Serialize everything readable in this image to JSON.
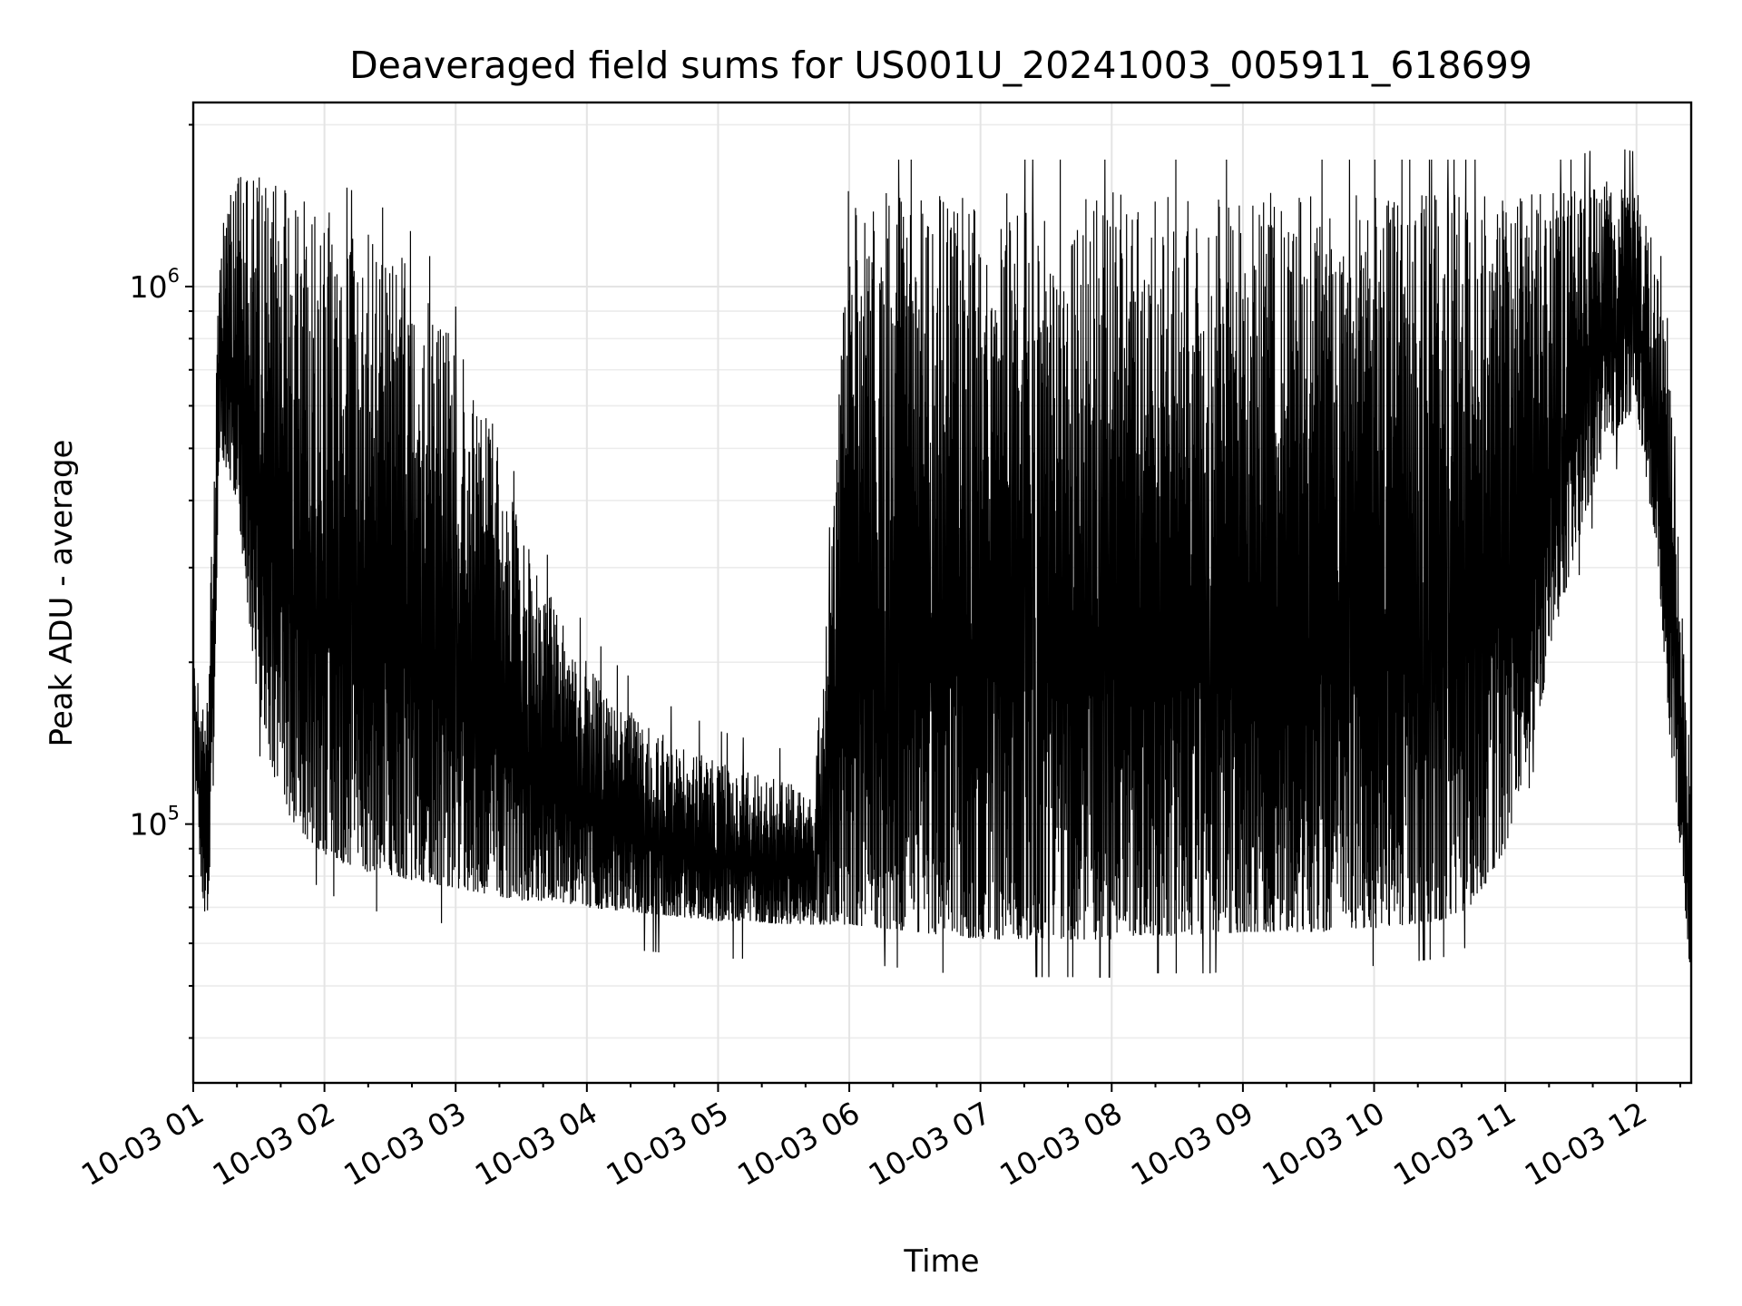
{
  "chart_data": {
    "type": "line",
    "title": "Deaveraged field sums for US001U_20241003_005911_618699",
    "xlabel": "Time",
    "ylabel": "Peak ADU - average",
    "x_scale": "time",
    "y_scale": "log",
    "xlim": [
      "2024-10-03 01:00",
      "2024-10-03 12:25"
    ],
    "ylim": [
      33000,
      2200000
    ],
    "grid": true,
    "legend": "none",
    "x_ticks": [
      "10-03 01",
      "10-03 02",
      "10-03 03",
      "10-03 04",
      "10-03 05",
      "10-03 06",
      "10-03 07",
      "10-03 08",
      "10-03 09",
      "10-03 10",
      "10-03 11",
      "10-03 12"
    ],
    "y_ticks": [
      {
        "base": "10",
        "exponent": "5",
        "value": 100000
      },
      {
        "base": "10",
        "exponent": "6",
        "value": 1000000
      }
    ],
    "line_color": "#000000",
    "series": [
      {
        "x": [
          "2024-10-03 01:00",
          "2024-10-03 01:03",
          "2024-10-03 01:06",
          "2024-10-03 01:09",
          "2024-10-03 01:12",
          "2024-10-03 01:20",
          "2024-10-03 01:30",
          "2024-10-03 01:40",
          "2024-10-03 01:50",
          "2024-10-03 02:00",
          "2024-10-03 02:15",
          "2024-10-03 02:30",
          "2024-10-03 02:45",
          "2024-10-03 03:00",
          "2024-10-03 03:15",
          "2024-10-03 03:30",
          "2024-10-03 03:45",
          "2024-10-03 04:00",
          "2024-10-03 04:15",
          "2024-10-03 04:30",
          "2024-10-03 04:45",
          "2024-10-03 05:00",
          "2024-10-03 05:15",
          "2024-10-03 05:30",
          "2024-10-03 05:45",
          "2024-10-03 06:00",
          "2024-10-03 06:15",
          "2024-10-03 06:30",
          "2024-10-03 06:45",
          "2024-10-03 07:00",
          "2024-10-03 07:15",
          "2024-10-03 07:30",
          "2024-10-03 07:45",
          "2024-10-03 08:00",
          "2024-10-03 08:15",
          "2024-10-03 08:30",
          "2024-10-03 08:45",
          "2024-10-03 09:00",
          "2024-10-03 09:15",
          "2024-10-03 09:30",
          "2024-10-03 09:45",
          "2024-10-03 10:00",
          "2024-10-03 10:15",
          "2024-10-03 10:30",
          "2024-10-03 10:45",
          "2024-10-03 11:00",
          "2024-10-03 11:15",
          "2024-10-03 11:30",
          "2024-10-03 11:45",
          "2024-10-03 12:00",
          "2024-10-03 12:10",
          "2024-10-03 12:15",
          "2024-10-03 12:20",
          "2024-10-03 12:25"
        ],
        "low": [
          180000,
          85000,
          62000,
          110000,
          500000,
          400000,
          160000,
          110000,
          95000,
          88000,
          82000,
          80000,
          78000,
          76000,
          74000,
          72000,
          72000,
          70000,
          69000,
          68000,
          67000,
          66000,
          66000,
          65000,
          65000,
          65000,
          64000,
          63000,
          62000,
          61000,
          61000,
          61000,
          61000,
          61000,
          62000,
          62000,
          62000,
          63000,
          63000,
          63000,
          63000,
          64000,
          65000,
          66000,
          70000,
          90000,
          160000,
          300000,
          500000,
          600000,
          300000,
          150000,
          90000,
          50000
        ],
        "high": [
          200000,
          180000,
          150000,
          400000,
          1300000,
          1600000,
          1600000,
          1550000,
          1500000,
          1400000,
          1300000,
          1200000,
          1050000,
          800000,
          600000,
          350000,
          260000,
          200000,
          170000,
          150000,
          140000,
          130000,
          125000,
          120000,
          115000,
          1400000,
          1500000,
          1500000,
          1500000,
          1500000,
          1500000,
          1500000,
          1500000,
          1500000,
          1500000,
          1500000,
          1500000,
          1500000,
          1500000,
          1500000,
          1500000,
          1500000,
          1500000,
          1500000,
          1500000,
          1500000,
          1500000,
          1500000,
          1600000,
          1550000,
          1100000,
          700000,
          300000,
          120000
        ]
      }
    ]
  }
}
